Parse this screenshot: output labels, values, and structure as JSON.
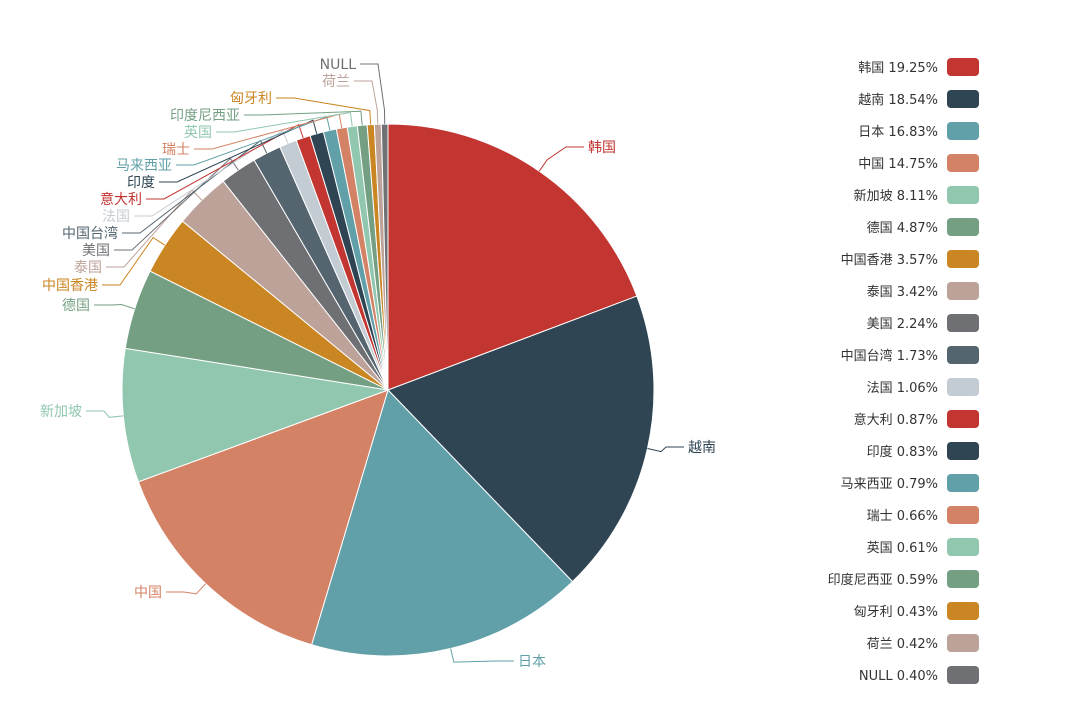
{
  "chart_data": {
    "type": "pie",
    "title": "",
    "start_angle_deg": 90,
    "direction": "clockwise",
    "legend_position": "right",
    "slices": [
      {
        "name": "韩国",
        "percent_label": "19.25%",
        "value": 19.25,
        "color": "#c23531"
      },
      {
        "name": "越南",
        "percent_label": "18.54%",
        "value": 18.54,
        "color": "#2f4554"
      },
      {
        "name": "日本",
        "percent_label": "16.83%",
        "value": 16.83,
        "color": "#61a0a8"
      },
      {
        "name": "中国",
        "percent_label": "14.75%",
        "value": 14.75,
        "color": "#d48265"
      },
      {
        "name": "新加坡",
        "percent_label": "8.11%",
        "value": 8.11,
        "color": "#91c7ae"
      },
      {
        "name": "德国",
        "percent_label": "4.87%",
        "value": 4.87,
        "color": "#749f83"
      },
      {
        "name": "中国香港",
        "percent_label": "3.57%",
        "value": 3.57,
        "color": "#ca8622"
      },
      {
        "name": "泰国",
        "percent_label": "3.42%",
        "value": 3.42,
        "color": "#bda29a"
      },
      {
        "name": "美国",
        "percent_label": "2.24%",
        "value": 2.24,
        "color": "#6e7074"
      },
      {
        "name": "中国台湾",
        "percent_label": "1.73%",
        "value": 1.73,
        "color": "#546570"
      },
      {
        "name": "法国",
        "percent_label": "1.06%",
        "value": 1.06,
        "color": "#c4ccd3"
      },
      {
        "name": "意大利",
        "percent_label": "0.87%",
        "value": 0.87,
        "color": "#c23531"
      },
      {
        "name": "印度",
        "percent_label": "0.83%",
        "value": 0.83,
        "color": "#2f4554"
      },
      {
        "name": "马来西亚",
        "percent_label": "0.79%",
        "value": 0.79,
        "color": "#61a0a8"
      },
      {
        "name": "瑞士",
        "percent_label": "0.66%",
        "value": 0.66,
        "color": "#d48265"
      },
      {
        "name": "英国",
        "percent_label": "0.61%",
        "value": 0.61,
        "color": "#91c7ae"
      },
      {
        "name": "印度尼西亚",
        "percent_label": "0.59%",
        "value": 0.59,
        "color": "#749f83"
      },
      {
        "name": "匈牙利",
        "percent_label": "0.43%",
        "value": 0.43,
        "color": "#ca8622"
      },
      {
        "name": "荷兰",
        "percent_label": "0.42%",
        "value": 0.42,
        "color": "#bda29a"
      },
      {
        "name": "NULL",
        "percent_label": "0.40%",
        "value": 0.4,
        "color": "#6e7074"
      }
    ]
  }
}
